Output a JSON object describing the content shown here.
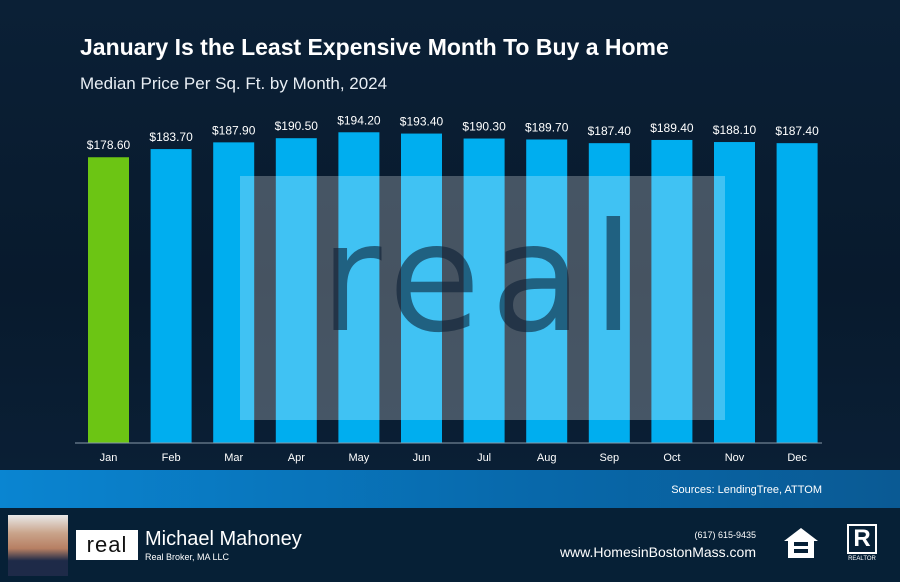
{
  "title": "January Is the Least Expensive Month To Buy a Home",
  "subtitle": "Median Price Per Sq. Ft. by Month, 2024",
  "sources": "Sources: LendingTree, ATTOM",
  "watermark": "real",
  "footer": {
    "name": "Michael Mahoney",
    "broker": "Real Broker, MA LLC",
    "logo": "real",
    "phone": "(617) 615-9435",
    "website": "www.HomesinBostonMass.com",
    "realtor": "REALTOR"
  },
  "chart_data": {
    "type": "bar",
    "title": "January Is the Least Expensive Month To Buy a Home",
    "subtitle": "Median Price Per Sq. Ft. by Month, 2024",
    "categories": [
      "Jan",
      "Feb",
      "Mar",
      "Apr",
      "May",
      "Jun",
      "Jul",
      "Aug",
      "Sep",
      "Oct",
      "Nov",
      "Dec"
    ],
    "values": [
      178.6,
      183.7,
      187.9,
      190.5,
      194.2,
      193.4,
      190.3,
      189.7,
      187.4,
      189.4,
      188.1,
      187.4
    ],
    "labels": [
      "$178.60",
      "$183.70",
      "$187.90",
      "$190.50",
      "$194.20",
      "$193.40",
      "$190.30",
      "$189.70",
      "$187.40",
      "$189.40",
      "$188.10",
      "$187.40"
    ],
    "ylim": [
      0,
      200
    ],
    "grid": false,
    "colors": {
      "highlight": "#6cc514",
      "default": "#00aeef"
    },
    "highlight_index": 0
  }
}
